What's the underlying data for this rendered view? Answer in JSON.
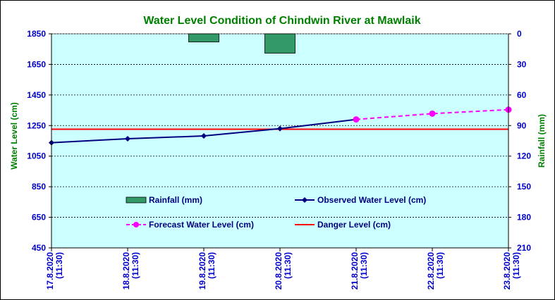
{
  "colors": {
    "plot_bg": "#ccffff",
    "title": "#008000",
    "axis_text": "#0000cc",
    "rainfall_bar": "#339966",
    "observed": "#000080",
    "forecast": "#ff00ff",
    "danger": "#ff0000",
    "grid": "#000000"
  },
  "chart_data": {
    "type": "line",
    "title": "Water Level Condition of Chindwin River at  Mawlaik",
    "ylabel": "Water Level (cm)",
    "y2label": "Rainfall (mm)",
    "categories": [
      "17.8.2020\n(11:30)",
      "18.8.2020\n(11:30)",
      "19.8.2020\n(11:30)",
      "20.8.2020\n(11:30)",
      "21.8.2020\n(11:30)",
      "22.8.2020\n(11:30)",
      "23.8.2020\n(11:30)"
    ],
    "ylim": [
      450,
      1850
    ],
    "y_ticks": [
      450,
      650,
      850,
      1050,
      1250,
      1450,
      1650,
      1850
    ],
    "y2lim": [
      0,
      210
    ],
    "y2_ticks": [
      0,
      30,
      60,
      90,
      120,
      150,
      180,
      210
    ],
    "y2_reversed": true,
    "grid": "horizontal dashed",
    "legend_position": "inside-bottom",
    "series": [
      {
        "name": "Rainfall (mm)",
        "type": "bar",
        "axis": "right",
        "values": [
          0,
          0,
          8,
          19,
          0,
          0,
          0
        ]
      },
      {
        "name": "Observed Water Level (cm)",
        "type": "line",
        "axis": "left",
        "values": [
          1138,
          1164,
          1182,
          1230,
          1290,
          null,
          null
        ]
      },
      {
        "name": "Forecast Water Level (cm)",
        "type": "line-dashed",
        "axis": "left",
        "values": [
          null,
          null,
          null,
          null,
          1290,
          1328,
          1354
        ]
      },
      {
        "name": "Danger Level (cm)",
        "type": "hline",
        "axis": "left",
        "value": 1226
      }
    ]
  }
}
